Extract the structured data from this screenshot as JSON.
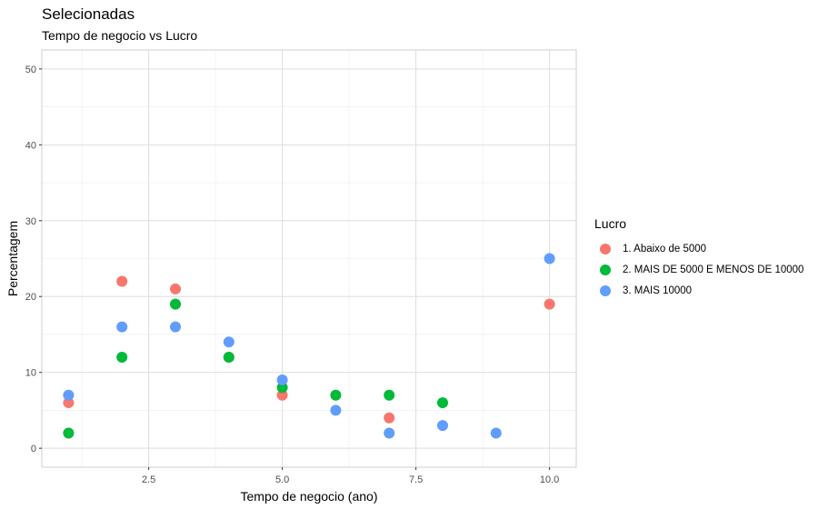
{
  "chart_data": {
    "type": "scatter",
    "title": "Selecionadas",
    "subtitle": "Tempo de negocio vs Lucro",
    "xlabel": "Tempo de negocio (ano)",
    "ylabel": "Percentagem",
    "xlim": [
      0.5,
      10.5
    ],
    "ylim": [
      -2.5,
      52.5
    ],
    "x_ticks": [
      2.5,
      5.0,
      7.5,
      10.0
    ],
    "x_tick_labels": [
      "2.5",
      "5.0",
      "7.5",
      "10.0"
    ],
    "y_ticks": [
      0,
      10,
      20,
      30,
      40,
      50
    ],
    "y_tick_labels": [
      "0",
      "10",
      "20",
      "30",
      "40",
      "50"
    ],
    "grid": true,
    "legend": {
      "title": "Lucro",
      "placement": "right"
    },
    "series": [
      {
        "name": "1. Abaixo de 5000",
        "color": "#F8766D",
        "points": [
          [
            1,
            6
          ],
          [
            2,
            22
          ],
          [
            3,
            21
          ],
          [
            4,
            12
          ],
          [
            5,
            7
          ],
          [
            7,
            4
          ],
          [
            10,
            19
          ]
        ]
      },
      {
        "name": "2. MAIS DE 5000 E MENOS DE 10000",
        "color": "#00BA38",
        "points": [
          [
            1,
            2
          ],
          [
            2,
            12
          ],
          [
            3,
            19
          ],
          [
            4,
            12
          ],
          [
            5,
            8
          ],
          [
            6,
            7
          ],
          [
            7,
            7
          ],
          [
            8,
            6
          ]
        ]
      },
      {
        "name": "3. MAIS 10000",
        "color": "#619CFF",
        "points": [
          [
            1,
            7
          ],
          [
            2,
            16
          ],
          [
            3,
            16
          ],
          [
            4,
            14
          ],
          [
            5,
            9
          ],
          [
            6,
            5
          ],
          [
            7,
            2
          ],
          [
            8,
            3
          ],
          [
            9,
            2
          ],
          [
            10,
            25
          ]
        ]
      }
    ]
  }
}
